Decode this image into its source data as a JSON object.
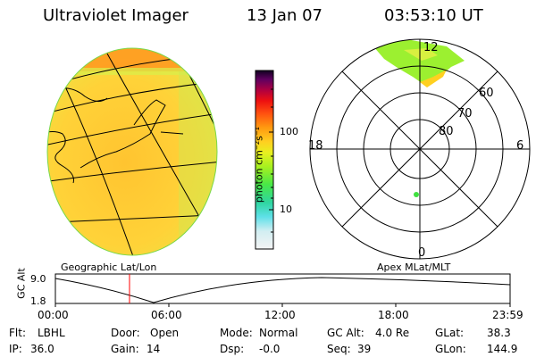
{
  "header": {
    "instrument": "Ultraviolet Imager",
    "date": "13 Jan 07",
    "time": "03:53:10 UT"
  },
  "colorbar": {
    "unit_label": "photon cm⁻²s⁻¹",
    "tick_100": "100",
    "tick_10": "10",
    "colors": [
      "#f0f0f0",
      "#d9f0f2",
      "#5fe0e8",
      "#2fd6b8",
      "#3ce85a",
      "#9cf020",
      "#e6f020",
      "#ffd020",
      "#ff9a10",
      "#ff6010",
      "#ff1010",
      "#cc0033",
      "#880055",
      "#401060",
      "#100020"
    ]
  },
  "globe": {
    "caption": "Geographic Lat/Lon"
  },
  "polar": {
    "caption": "Apex MLat/MLT",
    "mlt_labels": {
      "top": "12",
      "left": "18",
      "right": "6",
      "bottom": "0"
    },
    "lat_labels": [
      "60",
      "70",
      "80"
    ]
  },
  "timeline": {
    "axis_label": "GC Alt",
    "y_max": "9.0",
    "y_min": "1.8",
    "ticks": [
      "00:00",
      "06:00",
      "12:00",
      "18:00",
      "23:59"
    ],
    "current_time_fraction": 0.163
  },
  "info": {
    "flt_label": "Flt:",
    "flt_value": "LBHL",
    "ip_label": "IP:",
    "ip_value": "36.0",
    "door_label": "Door:",
    "door_value": "Open",
    "gain_label": "Gain:",
    "gain_value": "14",
    "mode_label": "Mode:",
    "mode_value": "Normal",
    "dsp_label": "Dsp:",
    "dsp_value": "-0.0",
    "gcalt_label": "GC Alt:",
    "gcalt_value": "4.0 Re",
    "seq_label": "Seq:",
    "seq_value": "39",
    "glat_label": "GLat:",
    "glat_value": "38.3",
    "glon_label": "GLon:",
    "glon_value": "144.9"
  }
}
